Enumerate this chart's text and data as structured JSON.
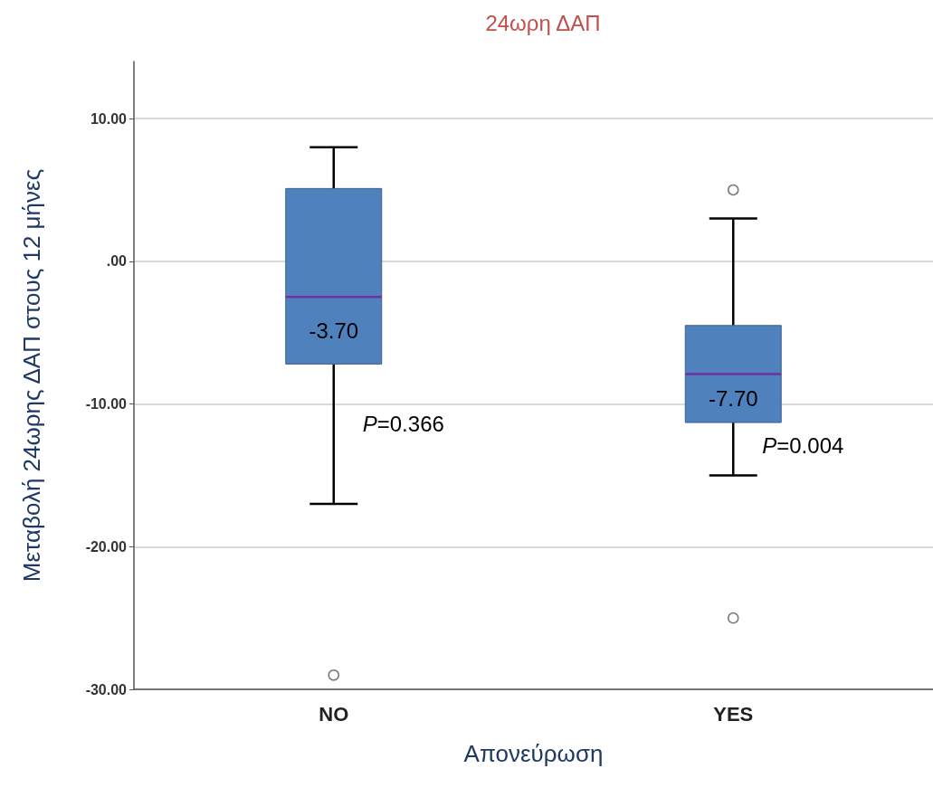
{
  "chart_data": {
    "type": "box",
    "title": "24ωρη ΔΑΠ",
    "xlabel": "Απονεύρωση",
    "ylabel": "Μεταβολή 24ωρης ΔΑΠ στους 12 μήνες",
    "categories": [
      "NO",
      "YES"
    ],
    "series": [
      {
        "color": "#4f81bd",
        "boxes": [
          {
            "low": -17,
            "q1": -7.2,
            "median": -2.5,
            "q3": 5.1,
            "high": 8,
            "outliers": [
              -29
            ]
          },
          {
            "low": -15,
            "q1": -11.3,
            "median": -7.9,
            "q3": -4.5,
            "high": 3,
            "outliers": [
              5,
              -25
            ]
          }
        ]
      }
    ],
    "ylim": [
      -30,
      14
    ],
    "yticks": [
      {
        "value": 10,
        "label": "10.00"
      },
      {
        "value": 0,
        "label": ".00"
      },
      {
        "value": -10,
        "label": "-10.00"
      },
      {
        "value": -20,
        "label": "-20.00"
      },
      {
        "value": -30,
        "label": "-30.00"
      }
    ],
    "grid": "y",
    "marker": "circle",
    "annotations": [
      "-3.70",
      {
        "text": "P=0.366",
        "x": "NO",
        "y": -11.4
      },
      "-7.70",
      {
        "text": "P=0.004",
        "x": "YES",
        "y": -12.9
      }
    ]
  }
}
